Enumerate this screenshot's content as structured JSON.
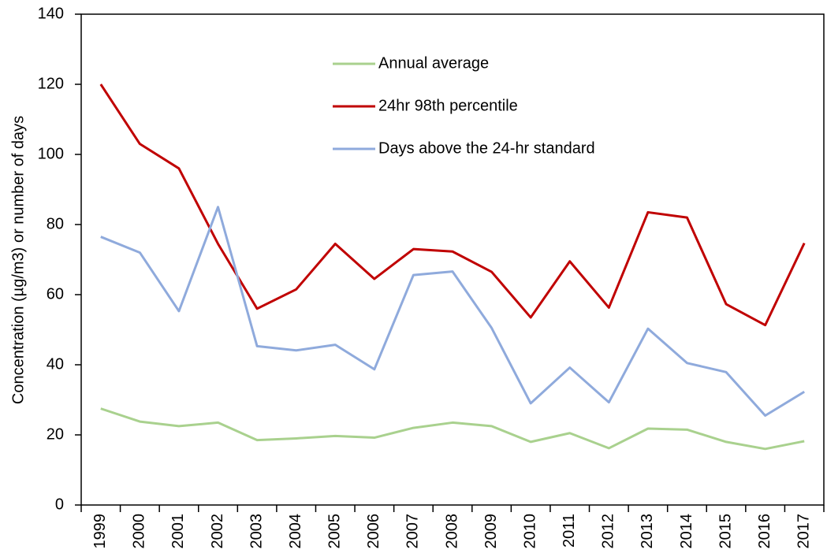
{
  "chart_data": {
    "type": "line",
    "y_label": "Concentration (µg/m3) or number of days",
    "categories": [
      "1999",
      "2000",
      "2001",
      "2002",
      "2003",
      "2004",
      "2005",
      "2006",
      "2007",
      "2008",
      "2009",
      "2010",
      "2011",
      "2012",
      "2013",
      "2014",
      "2015",
      "2016",
      "2017"
    ],
    "series": [
      {
        "name": "Annual average",
        "color": "#a9d18e",
        "values": [
          27.5,
          23.8,
          22.5,
          23.5,
          18.5,
          19,
          19.7,
          19.2,
          22,
          23.5,
          22.5,
          18,
          20.5,
          16.2,
          21.8,
          21.5,
          18,
          16,
          18.2
        ]
      },
      {
        "name": "24hr 98th percentile",
        "color": "#c00000",
        "values": [
          120,
          103,
          96,
          74.5,
          56,
          61.5,
          74.5,
          64.5,
          73,
          72.3,
          66.5,
          53.5,
          69.5,
          56.3,
          83.5,
          82,
          57.3,
          51.3,
          74.7
        ]
      },
      {
        "name": "Days above the 24-hr standard",
        "color": "#8faadc",
        "values": [
          76.5,
          72,
          55.3,
          85,
          45.3,
          44.1,
          45.7,
          38.7,
          65.6,
          66.6,
          50.5,
          29,
          39.2,
          29.3,
          50.3,
          40.5,
          37.9,
          25.5,
          32.3
        ]
      }
    ],
    "ylim": [
      0,
      140
    ],
    "yticks": [
      0,
      20,
      40,
      60,
      80,
      100,
      120,
      140
    ],
    "grid": false
  }
}
